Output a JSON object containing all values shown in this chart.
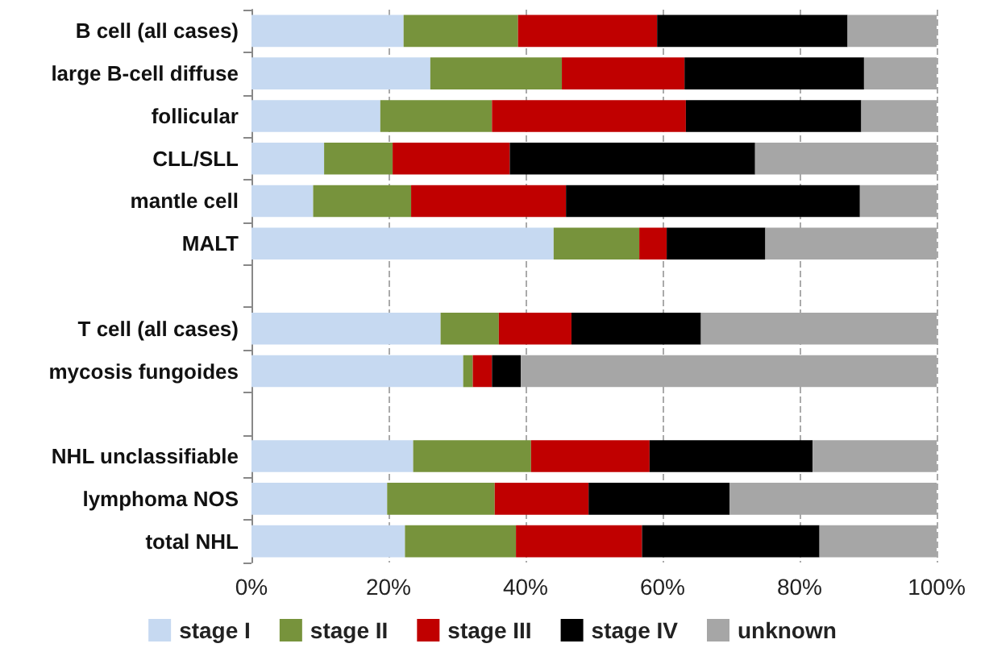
{
  "chart_data": {
    "type": "bar",
    "orientation": "horizontal",
    "stacked": true,
    "categories": [
      "B cell (all cases)",
      "large B-cell diffuse",
      "follicular",
      "CLL/SLL",
      "mantle cell",
      "MALT",
      null,
      "T cell (all cases)",
      "mycosis fungoides",
      null,
      "NHL unclassifiable",
      "lymphoma NOS",
      "total NHL"
    ],
    "series": [
      {
        "name": "stage I",
        "color": "#c6d9f1",
        "values": [
          22.2,
          26.1,
          18.8,
          10.6,
          9.0,
          44.1,
          null,
          27.6,
          30.9,
          null,
          23.6,
          19.8,
          22.4
        ]
      },
      {
        "name": "stage II",
        "color": "#77933c",
        "values": [
          16.7,
          19.2,
          16.3,
          10.0,
          14.3,
          12.5,
          null,
          8.5,
          1.4,
          null,
          17.2,
          15.7,
          16.2
        ]
      },
      {
        "name": "stage III",
        "color": "#c00000",
        "values": [
          20.3,
          17.9,
          28.3,
          17.1,
          22.6,
          4.0,
          null,
          10.6,
          2.8,
          null,
          17.3,
          13.7,
          18.4
        ]
      },
      {
        "name": "stage IV",
        "color": "#000000",
        "values": [
          27.8,
          26.2,
          25.6,
          35.8,
          42.9,
          14.4,
          null,
          18.9,
          4.2,
          null,
          23.8,
          20.6,
          25.9
        ]
      },
      {
        "name": "unknown",
        "color": "#a6a6a6",
        "values": [
          13.0,
          10.6,
          11.0,
          26.5,
          11.2,
          25.0,
          null,
          34.4,
          60.7,
          null,
          18.1,
          30.2,
          17.1
        ]
      }
    ],
    "xlim": [
      0,
      100
    ],
    "xticks": [
      {
        "value": 0,
        "label": "0%"
      },
      {
        "value": 20,
        "label": "20%"
      },
      {
        "value": 40,
        "label": "40%"
      },
      {
        "value": 60,
        "label": "60%"
      },
      {
        "value": 80,
        "label": "80%"
      },
      {
        "value": 100,
        "label": "100%"
      }
    ],
    "grid": "x",
    "legend": "bottom"
  }
}
